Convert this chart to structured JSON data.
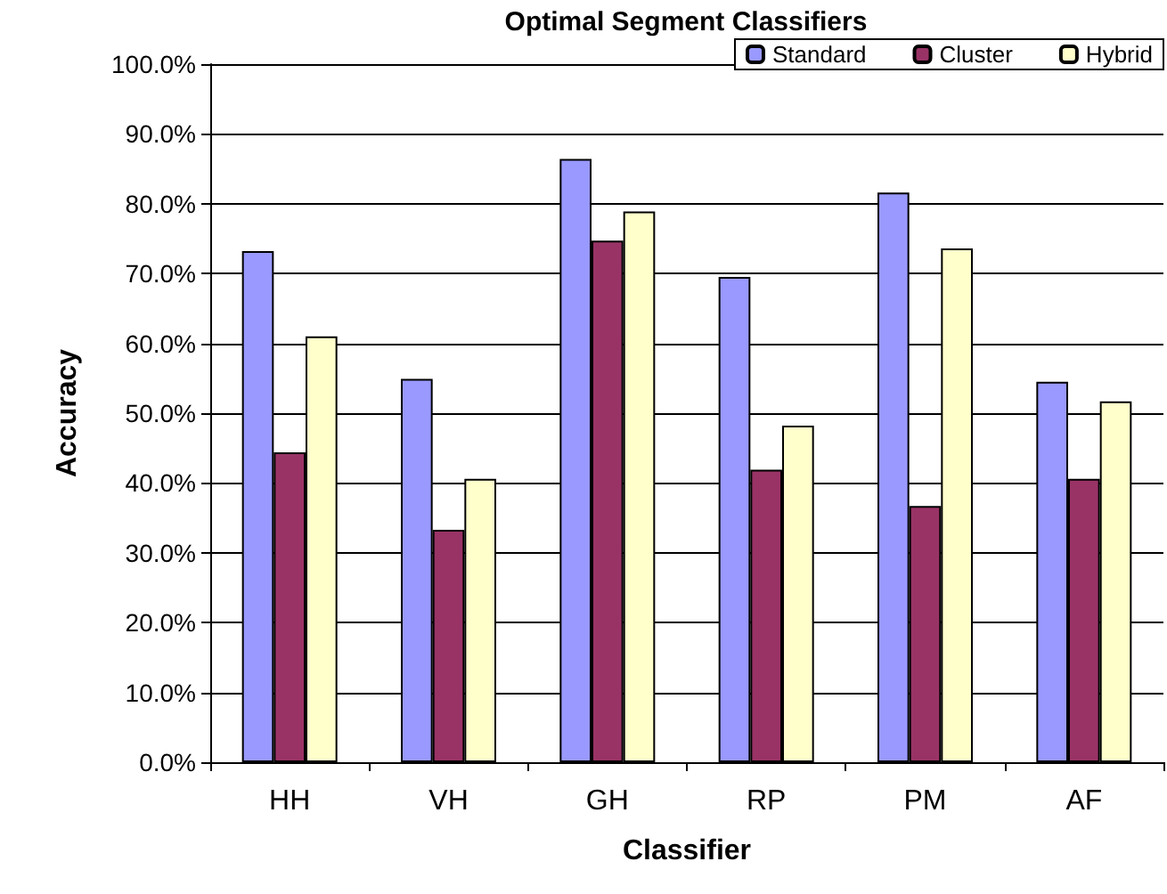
{
  "chart_data": {
    "type": "bar",
    "title": "Optimal Segment Classifiers",
    "xlabel": "Classifier",
    "ylabel": "Accuracy",
    "categories": [
      "HH",
      "VH",
      "GH",
      "RP",
      "PM",
      "AF"
    ],
    "series": [
      {
        "name": "Standard",
        "color": "#9999ff",
        "values": [
          73.2,
          54.9,
          86.4,
          69.5,
          81.6,
          54.5
        ]
      },
      {
        "name": "Cluster",
        "color": "#993366",
        "values": [
          44.4,
          33.3,
          74.7,
          41.9,
          36.7,
          40.6
        ]
      },
      {
        "name": "Hybrid",
        "color": "#ffffcc",
        "values": [
          61.0,
          40.6,
          78.9,
          48.2,
          73.6,
          51.7
        ]
      }
    ],
    "ylim": [
      0,
      100
    ],
    "yticks": [
      {
        "value": 0,
        "label": "0.0%"
      },
      {
        "value": 10,
        "label": "10.0%"
      },
      {
        "value": 20,
        "label": "20.0%"
      },
      {
        "value": 30,
        "label": "30.0%"
      },
      {
        "value": 40,
        "label": "40.0%"
      },
      {
        "value": 50,
        "label": "50.0%"
      },
      {
        "value": 60,
        "label": "60.0%"
      },
      {
        "value": 70,
        "label": "70.0%"
      },
      {
        "value": 80,
        "label": "80.0%"
      },
      {
        "value": 90,
        "label": "90.0%"
      },
      {
        "value": 100,
        "label": "100.0%"
      }
    ],
    "grid": "y",
    "legend": "top right"
  }
}
